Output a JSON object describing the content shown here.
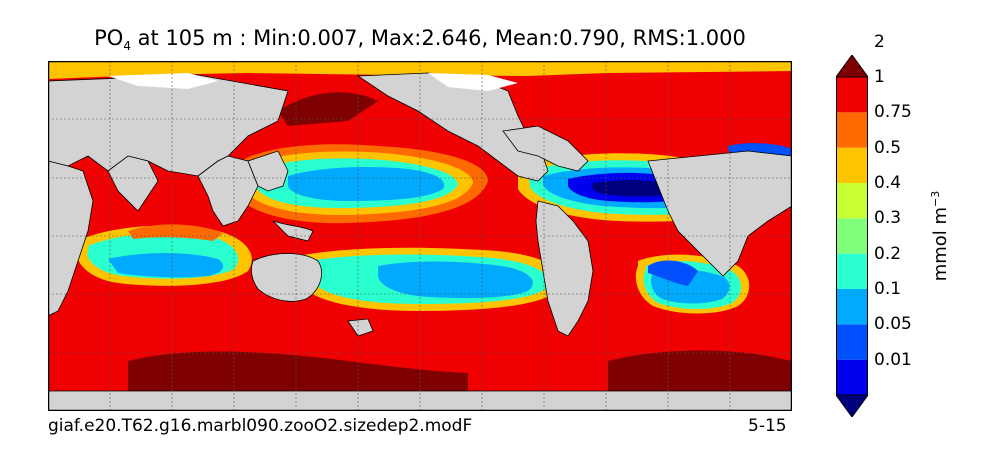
{
  "title": {
    "variable": "PO",
    "subscript": "4",
    "rest": "at 105 m : Min:0.007, Max:2.646, Mean:0.790, RMS:1.000"
  },
  "footer": {
    "case_name": "giaf.e20.T62.g16.marbl090.zooO2.sizedep2.modF",
    "years": "5-15"
  },
  "colorbar": {
    "units_base": "mmol m",
    "units_exp": "−3",
    "ticks": [
      "0.01",
      "0.05",
      "0.1",
      "0.2",
      "0.3",
      "0.4",
      "0.5",
      "0.75",
      "1",
      "2"
    ],
    "colors": [
      "#00007f",
      "#0000f0",
      "#0050ff",
      "#00aaff",
      "#2affd0",
      "#7fff7a",
      "#c8ff32",
      "#ffc400",
      "#ff6a00",
      "#f00000",
      "#7f0000"
    ]
  },
  "map": {
    "land_color": "#d3d3d3",
    "ice_color": "#ffffff"
  }
}
